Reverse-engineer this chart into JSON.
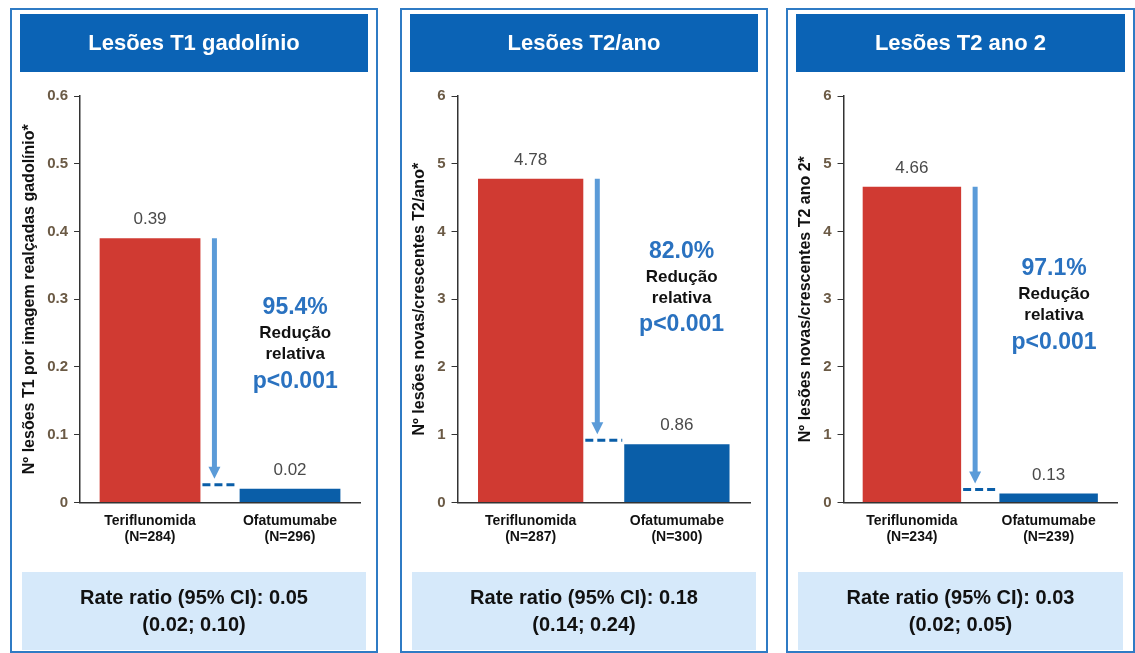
{
  "chart_data": [
    {
      "type": "bar",
      "title": "Lesões T1 gadolínio",
      "ylabel": "Nº lesões T1 por imagem realçadas gadolínio*",
      "categories": [
        "Teriflunomida\n(N=284)",
        "Ofatumumabe\n(N=296)"
      ],
      "values": [
        0.39,
        0.02
      ],
      "colors": [
        "#d03a32",
        "#0a5ea8"
      ],
      "ylim": [
        0,
        0.6
      ],
      "yticks": [
        0,
        0.1,
        0.2,
        0.3,
        0.4,
        0.5,
        0.6
      ],
      "grid": false,
      "legend": false,
      "data_labels": true,
      "annotations": [
        "95.4%",
        "Redução\nrelativa",
        "p<0.001",
        "Rate ratio (95% CI): 0.05\n(0.02; 0.10)"
      ]
    },
    {
      "type": "bar",
      "title": "Lesões T2/ano",
      "ylabel": "Nº lesões novas/crescentes T2/ano*",
      "categories": [
        "Teriflunomida\n(N=287)",
        "Ofatumumabe\n(N=300)"
      ],
      "values": [
        4.78,
        0.86
      ],
      "colors": [
        "#d03a32",
        "#0a5ea8"
      ],
      "ylim": [
        0,
        6
      ],
      "yticks": [
        0,
        1,
        2,
        3,
        4,
        5,
        6
      ],
      "grid": false,
      "legend": false,
      "data_labels": true,
      "annotations": [
        "82.0%",
        "Redução\nrelativa",
        "p<0.001",
        "Rate ratio (95% CI): 0.18\n(0.14; 0.24)"
      ]
    },
    {
      "type": "bar",
      "title": "Lesões T2 ano 2",
      "ylabel": "Nº lesões novas/crescentes T2 ano 2*",
      "categories": [
        "Teriflunomida\n(N=234)",
        "Ofatumumabe\n(N=239)"
      ],
      "values": [
        4.66,
        0.13
      ],
      "colors": [
        "#d03a32",
        "#0a5ea8"
      ],
      "ylim": [
        0,
        6
      ],
      "yticks": [
        0,
        1,
        2,
        3,
        4,
        5,
        6
      ],
      "grid": false,
      "legend": false,
      "data_labels": true,
      "annotations": [
        "97.1%",
        "Redução\nrelativa",
        "p<0.001",
        "Rate ratio (95% CI): 0.03\n(0.02; 0.05)"
      ]
    }
  ]
}
